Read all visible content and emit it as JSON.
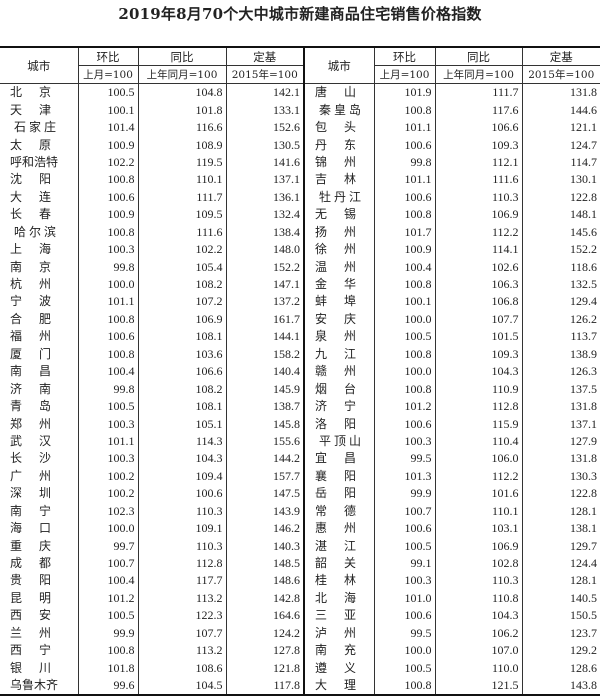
{
  "title": "2019年8月70个大中城市新建商品住宅销售价格指数",
  "headers": {
    "city": "城市",
    "mom": "环比",
    "yoy": "同比",
    "base": "定基",
    "mom_sub": "上月=100",
    "yoy_sub": "上年同月=100",
    "base_sub": "2015年=100"
  },
  "left": [
    [
      "北　京",
      "100.5",
      "104.8",
      "142.1"
    ],
    [
      "天　津",
      "100.1",
      "101.8",
      "133.1"
    ],
    [
      "石家庄",
      "101.4",
      "116.6",
      "152.6"
    ],
    [
      "太　原",
      "100.9",
      "108.9",
      "130.5"
    ],
    [
      "呼和浩特",
      "102.2",
      "119.5",
      "141.6"
    ],
    [
      "沈　阳",
      "100.8",
      "110.1",
      "137.1"
    ],
    [
      "大　连",
      "100.6",
      "111.7",
      "136.1"
    ],
    [
      "长　春",
      "100.9",
      "109.5",
      "132.4"
    ],
    [
      "哈尔滨",
      "100.8",
      "111.6",
      "138.4"
    ],
    [
      "上　海",
      "100.3",
      "102.2",
      "148.0"
    ],
    [
      "南　京",
      "99.8",
      "105.4",
      "152.2"
    ],
    [
      "杭　州",
      "100.0",
      "108.2",
      "147.1"
    ],
    [
      "宁　波",
      "101.1",
      "107.2",
      "137.2"
    ],
    [
      "合　肥",
      "100.8",
      "106.9",
      "161.7"
    ],
    [
      "福　州",
      "100.6",
      "108.1",
      "144.1"
    ],
    [
      "厦　门",
      "100.8",
      "103.6",
      "158.2"
    ],
    [
      "南　昌",
      "100.4",
      "106.6",
      "140.4"
    ],
    [
      "济　南",
      "99.8",
      "108.2",
      "145.9"
    ],
    [
      "青　岛",
      "100.5",
      "108.1",
      "138.7"
    ],
    [
      "郑　州",
      "100.3",
      "105.1",
      "145.8"
    ],
    [
      "武　汉",
      "101.1",
      "114.3",
      "155.6"
    ],
    [
      "长　沙",
      "100.3",
      "104.3",
      "144.2"
    ],
    [
      "广　州",
      "100.2",
      "109.4",
      "157.7"
    ],
    [
      "深　圳",
      "100.2",
      "100.6",
      "147.5"
    ],
    [
      "南　宁",
      "102.3",
      "110.3",
      "143.9"
    ],
    [
      "海　口",
      "100.0",
      "109.1",
      "146.2"
    ],
    [
      "重　庆",
      "99.7",
      "110.3",
      "140.3"
    ],
    [
      "成　都",
      "100.7",
      "112.8",
      "148.5"
    ],
    [
      "贵　阳",
      "100.4",
      "117.7",
      "148.6"
    ],
    [
      "昆　明",
      "101.2",
      "113.2",
      "142.8"
    ],
    [
      "西　安",
      "100.5",
      "122.3",
      "164.6"
    ],
    [
      "兰　州",
      "99.9",
      "107.7",
      "124.2"
    ],
    [
      "西　宁",
      "100.8",
      "113.2",
      "127.8"
    ],
    [
      "银　川",
      "101.8",
      "108.6",
      "121.8"
    ],
    [
      "乌鲁木齐",
      "99.6",
      "104.5",
      "117.8"
    ]
  ],
  "right": [
    [
      "唐　山",
      "101.9",
      "111.7",
      "131.8"
    ],
    [
      "秦皇岛",
      "100.8",
      "117.6",
      "144.6"
    ],
    [
      "包　头",
      "101.1",
      "106.6",
      "121.1"
    ],
    [
      "丹　东",
      "100.6",
      "109.3",
      "124.7"
    ],
    [
      "锦　州",
      "99.8",
      "112.1",
      "114.7"
    ],
    [
      "吉　林",
      "101.1",
      "111.6",
      "130.1"
    ],
    [
      "牡丹江",
      "100.6",
      "110.3",
      "122.8"
    ],
    [
      "无　锡",
      "100.8",
      "106.9",
      "148.1"
    ],
    [
      "扬　州",
      "101.7",
      "112.2",
      "145.6"
    ],
    [
      "徐　州",
      "100.9",
      "114.1",
      "152.2"
    ],
    [
      "温　州",
      "100.4",
      "102.6",
      "118.6"
    ],
    [
      "金　华",
      "100.8",
      "106.3",
      "132.5"
    ],
    [
      "蚌　埠",
      "100.1",
      "106.8",
      "129.4"
    ],
    [
      "安　庆",
      "100.0",
      "107.7",
      "126.2"
    ],
    [
      "泉　州",
      "100.5",
      "101.5",
      "113.7"
    ],
    [
      "九　江",
      "100.8",
      "109.3",
      "138.9"
    ],
    [
      "赣　州",
      "100.0",
      "104.3",
      "126.3"
    ],
    [
      "烟　台",
      "100.8",
      "110.9",
      "137.5"
    ],
    [
      "济　宁",
      "101.2",
      "112.8",
      "131.8"
    ],
    [
      "洛　阳",
      "100.6",
      "115.9",
      "137.1"
    ],
    [
      "平顶山",
      "100.3",
      "110.4",
      "127.9"
    ],
    [
      "宜　昌",
      "99.5",
      "106.0",
      "131.8"
    ],
    [
      "襄　阳",
      "101.3",
      "112.2",
      "130.3"
    ],
    [
      "岳　阳",
      "99.9",
      "101.6",
      "122.8"
    ],
    [
      "常　德",
      "100.7",
      "110.1",
      "128.1"
    ],
    [
      "惠　州",
      "100.6",
      "103.1",
      "138.1"
    ],
    [
      "湛　江",
      "100.5",
      "106.9",
      "129.7"
    ],
    [
      "韶　关",
      "99.1",
      "102.8",
      "124.4"
    ],
    [
      "桂　林",
      "100.3",
      "110.3",
      "128.1"
    ],
    [
      "北　海",
      "101.0",
      "110.8",
      "140.5"
    ],
    [
      "三　亚",
      "100.6",
      "104.3",
      "150.5"
    ],
    [
      "泸　州",
      "99.5",
      "106.2",
      "123.7"
    ],
    [
      "南　充",
      "100.0",
      "107.0",
      "129.2"
    ],
    [
      "遵　义",
      "100.5",
      "110.0",
      "128.6"
    ],
    [
      "大　理",
      "100.8",
      "121.5",
      "143.8"
    ]
  ]
}
